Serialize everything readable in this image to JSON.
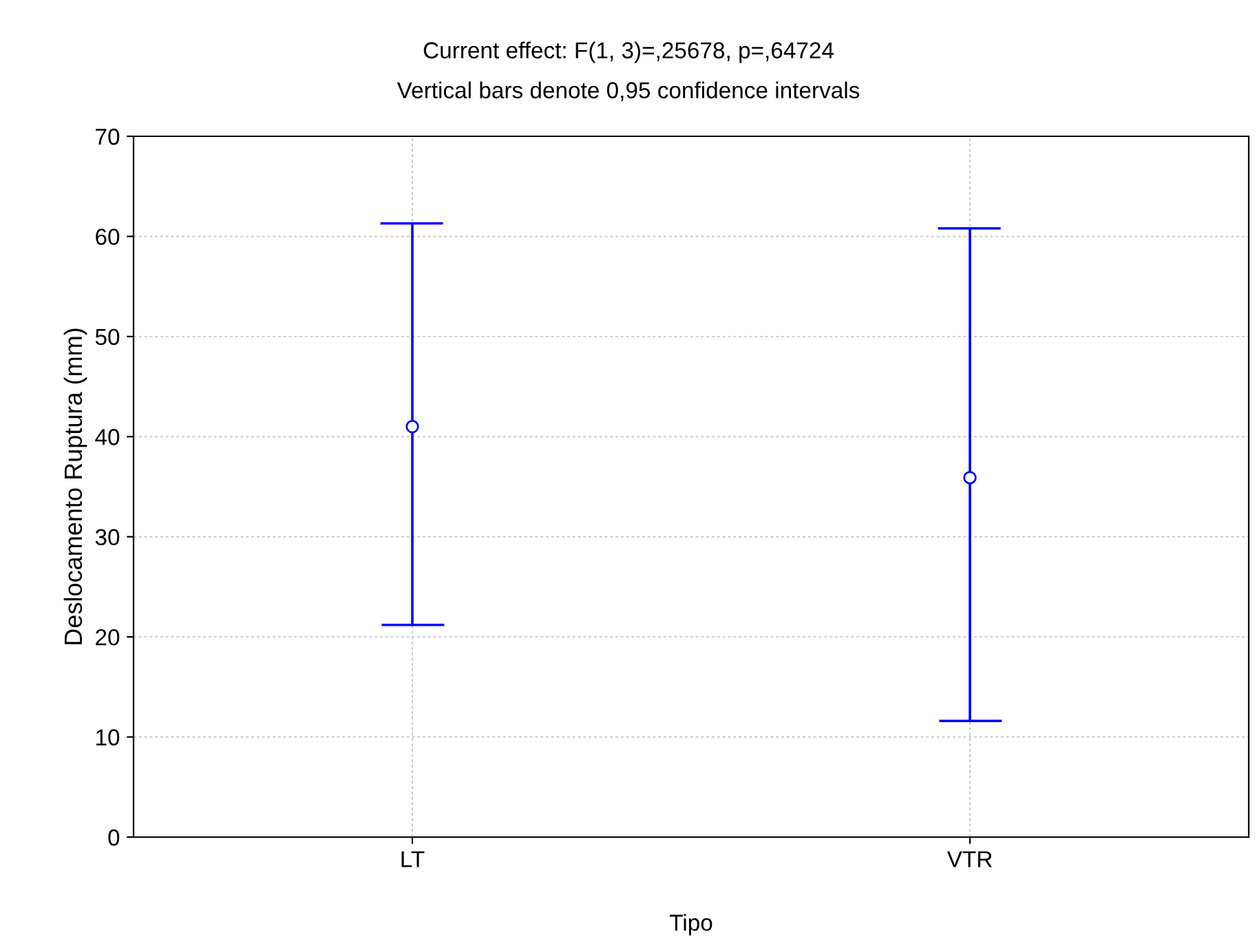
{
  "chart_data": {
    "type": "scatter",
    "title": "Current effect: F(1, 3)=,25678, p=,64724",
    "subtitle": "Vertical bars denote 0,95 confidence intervals",
    "xlabel": "Tipo",
    "ylabel": "Deslocamento Ruptura (mm)",
    "categories": [
      "LT",
      "VTR"
    ],
    "series": [
      {
        "color": "#0000ff",
        "values": [
          41.0,
          35.9
        ],
        "errors": [
          [
            21.2,
            61.3
          ],
          [
            11.6,
            60.8
          ]
        ]
      }
    ],
    "ylim": [
      0,
      70
    ],
    "yticks": [
      0,
      10,
      20,
      30,
      40,
      50,
      60,
      70
    ],
    "grid": true,
    "marker": "circle"
  }
}
